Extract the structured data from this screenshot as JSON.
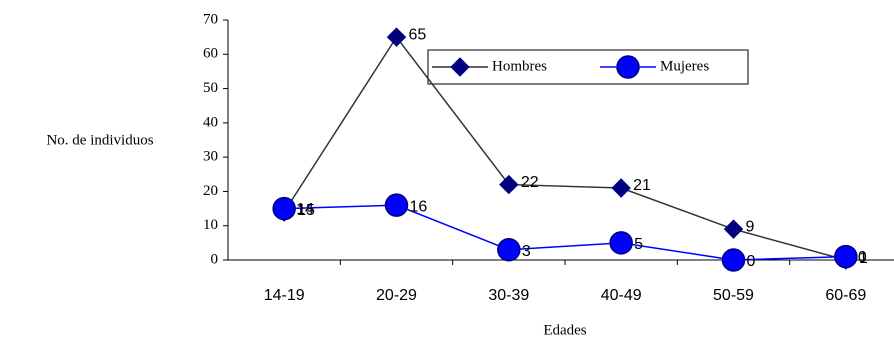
{
  "chart_data": {
    "type": "line",
    "ylabel": "No. de individuos",
    "xlabel": "Edades",
    "categories": [
      "14-19",
      "20-29",
      "30-39",
      "40-49",
      "50-59",
      "60-69"
    ],
    "series": [
      {
        "name": "Hombres",
        "color": "#000080",
        "line_color": "#333333",
        "marker": "diamond",
        "values": [
          14,
          65,
          22,
          21,
          9,
          0
        ]
      },
      {
        "name": "Mujeres",
        "color": "#0000ff",
        "line_color": "#0000ff",
        "marker": "circle",
        "values": [
          15,
          16,
          3,
          5,
          0,
          1
        ]
      }
    ],
    "ylim": [
      0,
      70
    ],
    "yticks": [
      0,
      10,
      20,
      30,
      40,
      50,
      60,
      70
    ]
  }
}
